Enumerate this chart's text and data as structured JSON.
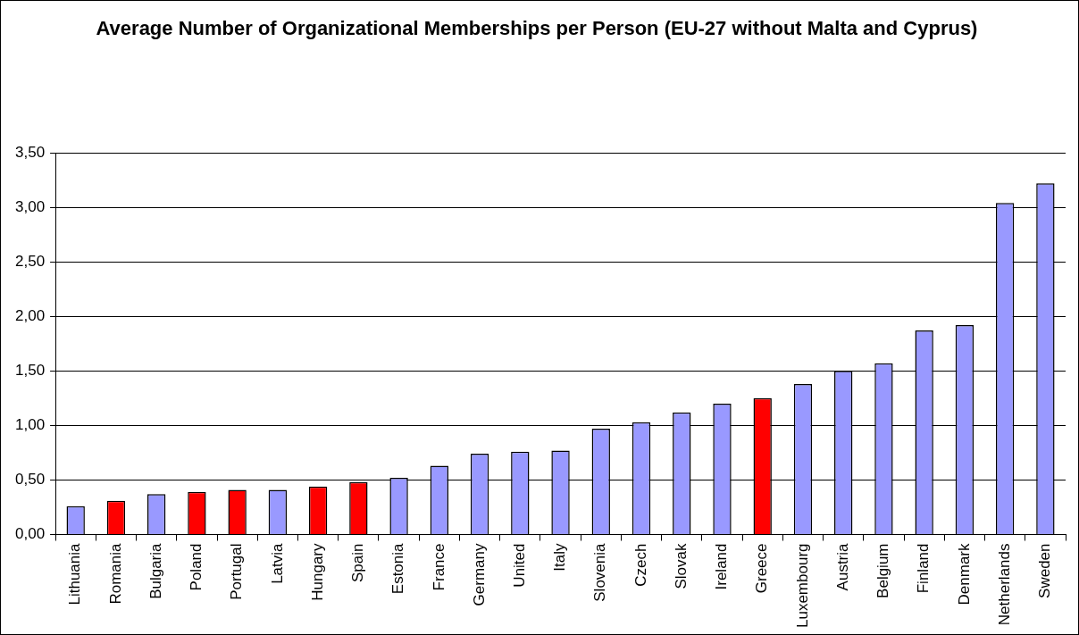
{
  "chart_data": {
    "type": "bar",
    "title": "Average Number of Organizational Memberships per Person (EU-27 without Malta and Cyprus)",
    "categories": [
      "Lithuania",
      "Romania",
      "Bulgaria",
      "Poland",
      "Portugal",
      "Latvia",
      "Hungary",
      "Spain",
      "Estonia",
      "France",
      "Germany",
      "United",
      "Italy",
      "Slovenia",
      "Czech",
      "Slovak",
      "Ireland",
      "Greece",
      "Luxembourg",
      "Austria",
      "Belgium",
      "Finland",
      "Denmark",
      "Netherlands",
      "Sweden"
    ],
    "values": [
      0.26,
      0.31,
      0.37,
      0.39,
      0.41,
      0.41,
      0.44,
      0.48,
      0.52,
      0.63,
      0.74,
      0.76,
      0.77,
      0.97,
      1.03,
      1.12,
      1.2,
      1.25,
      1.38,
      1.5,
      1.57,
      1.87,
      1.92,
      3.04,
      3.22
    ],
    "colors": [
      "#9999ff",
      "#ff0000",
      "#9999ff",
      "#ff0000",
      "#ff0000",
      "#9999ff",
      "#ff0000",
      "#ff0000",
      "#9999ff",
      "#9999ff",
      "#9999ff",
      "#9999ff",
      "#9999ff",
      "#9999ff",
      "#9999ff",
      "#9999ff",
      "#9999ff",
      "#ff0000",
      "#9999ff",
      "#9999ff",
      "#9999ff",
      "#9999ff",
      "#9999ff",
      "#9999ff",
      "#9999ff"
    ],
    "ylim": [
      0,
      3.5
    ],
    "yticks": [
      {
        "value": 0,
        "label": "0,00"
      },
      {
        "value": 0.5,
        "label": "0,50"
      },
      {
        "value": 1,
        "label": "1,00"
      },
      {
        "value": 1.5,
        "label": "1,50"
      },
      {
        "value": 2,
        "label": "2,00"
      },
      {
        "value": 2.5,
        "label": "2,50"
      },
      {
        "value": 3,
        "label": "3,00"
      },
      {
        "value": 3.5,
        "label": "3,50"
      }
    ],
    "grid": "y",
    "legend": false
  }
}
